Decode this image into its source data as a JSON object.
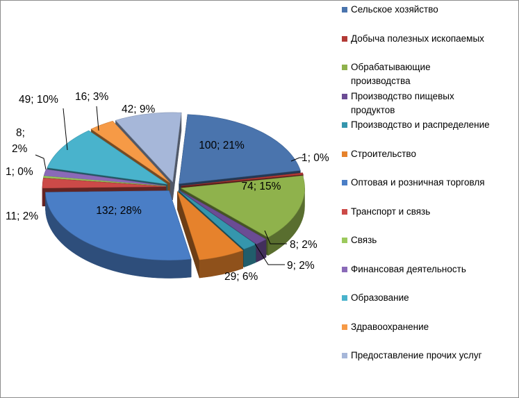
{
  "colors": {
    "selskoe": "#4a74ad",
    "dobycha": "#b23a36",
    "obrab": "#8fb24c",
    "pishchevye": "#6b4c94",
    "raspredelenie": "#3596ad",
    "stroitelstvo": "#e6822c",
    "torgovlya": "#4a7ec6",
    "transport": "#cc4a48",
    "svyaz": "#9cc95c",
    "finansy": "#8a6ab8",
    "obrazovanie": "#49b3cc",
    "zdravoohranenie": "#f69a46",
    "prochie": "#a6b7d9"
  },
  "chart_data": {
    "type": "pie",
    "variant": "3d-exploded",
    "legend_position": "right",
    "title": "",
    "slices": [
      {
        "label": "Сельское хозяйство",
        "value": 100,
        "percent": "21%",
        "data_label": "100; 21%",
        "color": "#4a74ad"
      },
      {
        "label": "Добыча полезных ископаемых",
        "value": 1,
        "percent": "0%",
        "data_label": "1; 0%",
        "color": "#b23a36"
      },
      {
        "label": "Обрабатывающие производства",
        "value": 74,
        "percent": "15%",
        "data_label": "74; 15%",
        "color": "#8fb24c"
      },
      {
        "label": "Производство пищевых продуктов",
        "value": 8,
        "percent": "2%",
        "data_label": "8; 2%",
        "color": "#6b4c94"
      },
      {
        "label": "Производство и распределение",
        "value": 9,
        "percent": "2%",
        "data_label": "9; 2%",
        "color": "#3596ad"
      },
      {
        "label": "Строительство",
        "value": 29,
        "percent": "6%",
        "data_label": "29; 6%",
        "color": "#e6822c"
      },
      {
        "label": "Оптовая и розничная торговля",
        "value": 132,
        "percent": "28%",
        "data_label": "132; 28%",
        "color": "#4a7ec6"
      },
      {
        "label": "Транспорт и связь",
        "value": 11,
        "percent": "2%",
        "data_label": "11; 2%",
        "color": "#cc4a48"
      },
      {
        "label": "Связь",
        "value": 1,
        "percent": "0%",
        "data_label": "1; 0%",
        "color": "#9cc95c"
      },
      {
        "label": "Финансовая деятельность",
        "value": 8,
        "percent": "2%",
        "data_label_parts": [
          "8;",
          "2%"
        ],
        "color": "#8a6ab8"
      },
      {
        "label": "Образование",
        "value": 49,
        "percent": "10%",
        "data_label": "49; 10%",
        "color": "#49b3cc"
      },
      {
        "label": "Здравоохранение",
        "value": 16,
        "percent": "3%",
        "data_label": "16; 3%",
        "color": "#f69a46"
      },
      {
        "label": "Предоставление прочих услуг",
        "value": 42,
        "percent": "9%",
        "data_label": "42; 9%",
        "color": "#a6b7d9"
      }
    ]
  },
  "legend": {
    "items": [
      {
        "lines": [
          "Сельское хозяйство"
        ],
        "color": "#4a74ad"
      },
      {
        "lines": [
          "Добыча полезных ископаемых"
        ],
        "color": "#b23a36"
      },
      {
        "lines": [
          "Обрабатывающие",
          "производства"
        ],
        "color": "#8fb24c"
      },
      {
        "lines": [
          "Производство пищевых",
          "продуктов"
        ],
        "color": "#6b4c94"
      },
      {
        "lines": [
          "Производство и распределение"
        ],
        "color": "#3596ad"
      },
      {
        "lines": [
          "Строительство"
        ],
        "color": "#e6822c"
      },
      {
        "lines": [
          "Оптовая и розничная торговля"
        ],
        "color": "#4a7ec6"
      },
      {
        "lines": [
          "Транспорт и связь"
        ],
        "color": "#cc4a48"
      },
      {
        "lines": [
          "Связь"
        ],
        "color": "#9cc95c"
      },
      {
        "lines": [
          "Финансовая деятельность"
        ],
        "color": "#8a6ab8"
      },
      {
        "lines": [
          "Образование"
        ],
        "color": "#49b3cc"
      },
      {
        "lines": [
          "Здравоохранение"
        ],
        "color": "#f69a46"
      },
      {
        "lines": [
          "Предоставление прочих услуг"
        ],
        "color": "#a6b7d9"
      }
    ]
  }
}
